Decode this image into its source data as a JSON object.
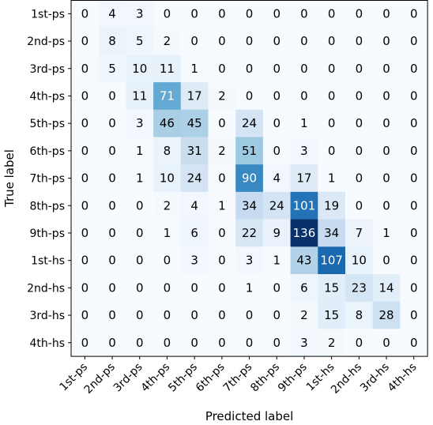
{
  "chart_data": {
    "type": "heatmap",
    "title": "",
    "xlabel": "Predicted label",
    "ylabel": "True label",
    "x_categories": [
      "1st-ps",
      "2nd-ps",
      "3rd-ps",
      "4th-ps",
      "5th-ps",
      "6th-ps",
      "7th-ps",
      "8th-ps",
      "9th-ps",
      "1st-hs",
      "2nd-hs",
      "3rd-hs",
      "4th-hs"
    ],
    "y_categories": [
      "1st-ps",
      "2nd-ps",
      "3rd-ps",
      "4th-ps",
      "5th-ps",
      "6th-ps",
      "7th-ps",
      "8th-ps",
      "9th-ps",
      "1st-hs",
      "2nd-hs",
      "3rd-hs",
      "4th-hs"
    ],
    "values": [
      [
        0,
        4,
        3,
        0,
        0,
        0,
        0,
        0,
        0,
        0,
        0,
        0,
        0
      ],
      [
        0,
        8,
        5,
        2,
        0,
        0,
        0,
        0,
        0,
        0,
        0,
        0,
        0
      ],
      [
        0,
        5,
        10,
        11,
        1,
        0,
        0,
        0,
        0,
        0,
        0,
        0,
        0
      ],
      [
        0,
        0,
        11,
        71,
        17,
        2,
        0,
        0,
        0,
        0,
        0,
        0,
        0
      ],
      [
        0,
        0,
        3,
        46,
        45,
        0,
        24,
        0,
        1,
        0,
        0,
        0,
        0
      ],
      [
        0,
        0,
        1,
        8,
        31,
        2,
        51,
        0,
        3,
        0,
        0,
        0,
        0
      ],
      [
        0,
        0,
        1,
        10,
        24,
        0,
        90,
        4,
        17,
        1,
        0,
        0,
        0
      ],
      [
        0,
        0,
        0,
        2,
        4,
        1,
        34,
        24,
        101,
        19,
        0,
        0,
        0
      ],
      [
        0,
        0,
        0,
        1,
        6,
        0,
        22,
        9,
        136,
        34,
        7,
        1,
        0
      ],
      [
        0,
        0,
        0,
        0,
        3,
        0,
        3,
        1,
        43,
        107,
        10,
        0,
        0
      ],
      [
        0,
        0,
        0,
        0,
        0,
        0,
        1,
        0,
        6,
        15,
        23,
        14,
        0
      ],
      [
        0,
        0,
        0,
        0,
        0,
        0,
        0,
        0,
        2,
        15,
        8,
        28,
        0
      ],
      [
        0,
        0,
        0,
        0,
        0,
        0,
        0,
        0,
        3,
        2,
        0,
        0,
        0
      ]
    ],
    "colormap": "Blues",
    "vmin": 0,
    "vmax": 136,
    "text_color_dark": "#000000",
    "text_color_light": "#ffffff"
  }
}
